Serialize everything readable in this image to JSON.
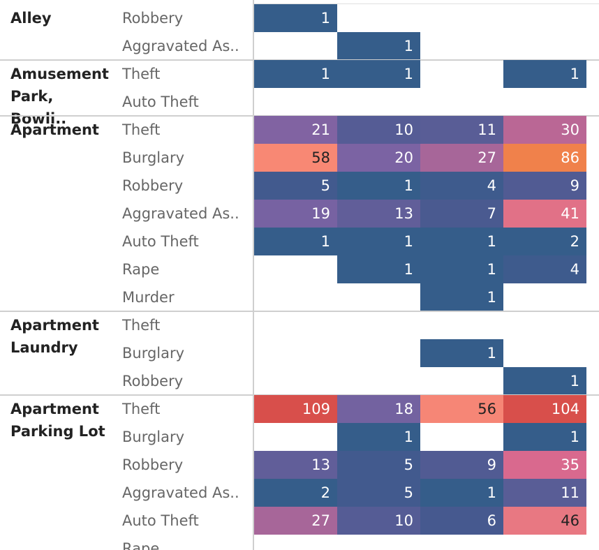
{
  "chart_data": {
    "type": "heatmap",
    "columns": 4,
    "rows": [
      {
        "location": "Alley",
        "crime": "Robbery",
        "values": [
          1,
          null,
          null,
          null
        ]
      },
      {
        "location": "Alley",
        "crime": "Aggravated As..",
        "values": [
          null,
          1,
          null,
          null
        ]
      },
      {
        "location": "Amusement\nPark, Bowli..",
        "crime": "Theft",
        "values": [
          1,
          1,
          null,
          1
        ]
      },
      {
        "location": "Amusement\nPark, Bowli..",
        "crime": "Auto Theft",
        "values": [
          null,
          null,
          null,
          null
        ]
      },
      {
        "location": "Apartment",
        "crime": "Theft",
        "values": [
          21,
          10,
          11,
          30
        ]
      },
      {
        "location": "Apartment",
        "crime": "Burglary",
        "values": [
          58,
          20,
          27,
          86
        ]
      },
      {
        "location": "Apartment",
        "crime": "Robbery",
        "values": [
          5,
          1,
          4,
          9
        ]
      },
      {
        "location": "Apartment",
        "crime": "Aggravated As..",
        "values": [
          19,
          13,
          7,
          41
        ]
      },
      {
        "location": "Apartment",
        "crime": "Auto Theft",
        "values": [
          1,
          1,
          1,
          2
        ]
      },
      {
        "location": "Apartment",
        "crime": "Rape",
        "values": [
          null,
          1,
          1,
          4
        ]
      },
      {
        "location": "Apartment",
        "crime": "Murder",
        "values": [
          null,
          null,
          1,
          null
        ]
      },
      {
        "location": "Apartment\nLaundry",
        "crime": "Theft",
        "values": [
          null,
          null,
          null,
          null
        ]
      },
      {
        "location": "Apartment\nLaundry",
        "crime": "Burglary",
        "values": [
          null,
          null,
          1,
          null
        ]
      },
      {
        "location": "Apartment\nLaundry",
        "crime": "Robbery",
        "values": [
          null,
          null,
          null,
          1
        ]
      },
      {
        "location": "Apartment\nParking Lot",
        "crime": "Theft",
        "values": [
          109,
          18,
          56,
          104
        ]
      },
      {
        "location": "Apartment\nParking Lot",
        "crime": "Burglary",
        "values": [
          null,
          1,
          null,
          1
        ]
      },
      {
        "location": "Apartment\nParking Lot",
        "crime": "Robbery",
        "values": [
          13,
          5,
          9,
          35
        ]
      },
      {
        "location": "Apartment\nParking Lot",
        "crime": "Aggravated As..",
        "values": [
          2,
          5,
          1,
          11
        ]
      },
      {
        "location": "Apartment\nParking Lot",
        "crime": "Auto Theft",
        "values": [
          27,
          10,
          6,
          46
        ]
      },
      {
        "location": "Apartment\nParking Lot",
        "crime": "Rape",
        "values": [
          null,
          null,
          null,
          null
        ]
      }
    ],
    "color_scale": {
      "low": "#355d8a",
      "mid_low": "#7b63a3",
      "mid": "#d9698e",
      "high": "#fb8b72",
      "max": "#d84f4b"
    },
    "partial_fifth_column_marks": [
      "Apartment|Burglary",
      "Apartment Parking Lot|Theft",
      "Apartment Parking Lot|Auto Theft"
    ]
  }
}
